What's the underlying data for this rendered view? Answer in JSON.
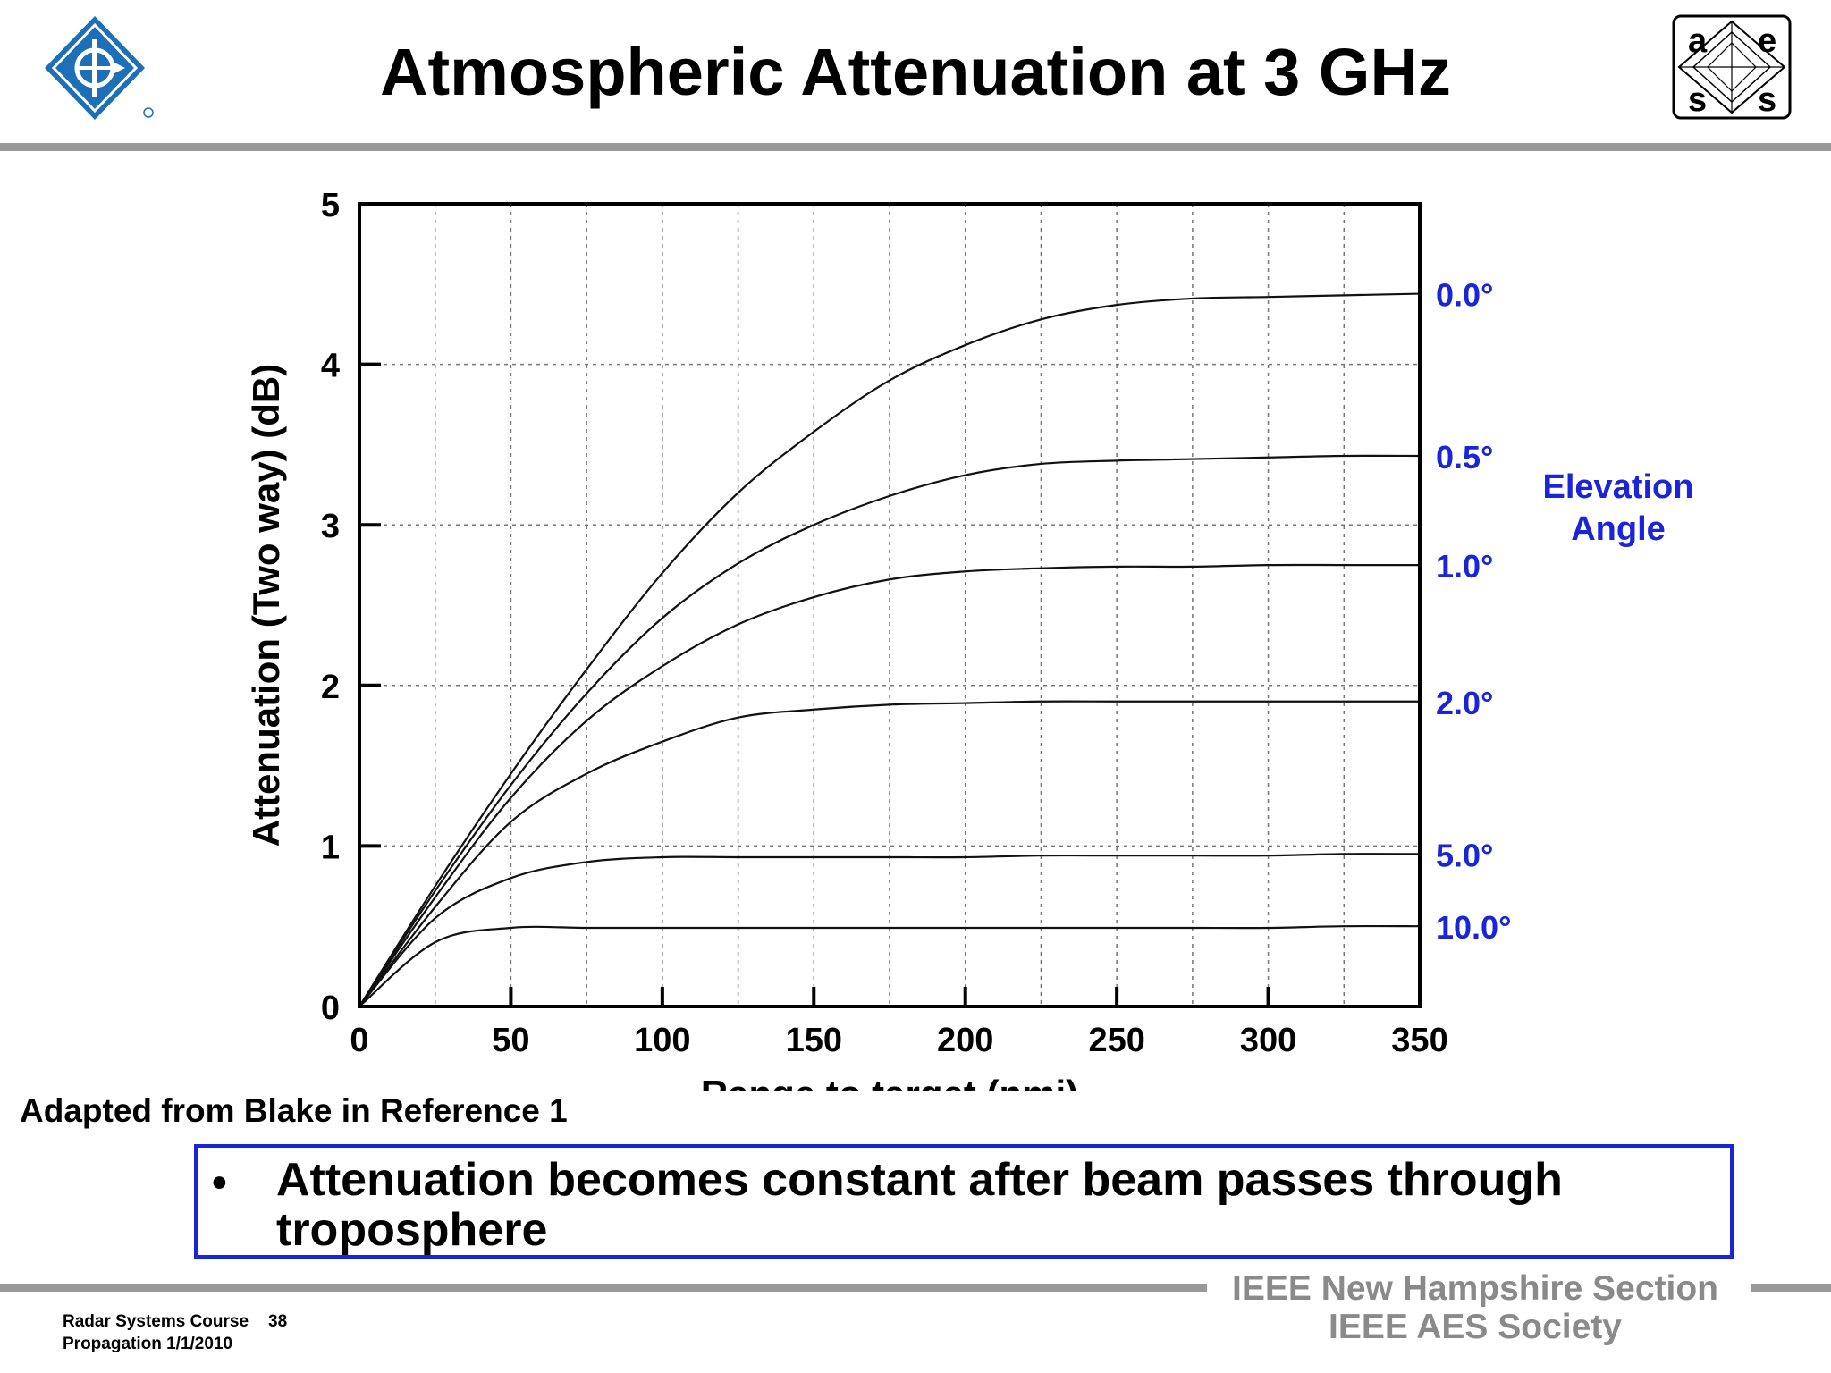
{
  "slide": {
    "title": "Atmospheric Attenuation at 3 GHz",
    "source_note": "Adapted from Blake in Reference 1",
    "callout": {
      "bullet": "•",
      "text": "Attenuation becomes constant after beam passes through troposphere"
    },
    "footer": {
      "org_line1": "IEEE New Hampshire Section",
      "org_line2": "IEEE AES Society",
      "course": "Radar Systems Course",
      "page": "38",
      "topic_date": "Propagation  1/1/2010"
    },
    "logos": {
      "left": "ieee-diamond-logo",
      "right": "aes-logo",
      "aes_letters": [
        "a",
        "e",
        "s",
        "s"
      ]
    },
    "colors": {
      "accent_blue": "#1a24d8",
      "rule_gray": "#999999",
      "ieee_blue": "#1d6fb8"
    }
  },
  "chart_data": {
    "type": "line",
    "title": "",
    "xlabel": "Range to target (nmi)",
    "ylabel": "Attenuation (Two way) (dB)",
    "xlim": [
      0,
      350
    ],
    "ylim": [
      0,
      5
    ],
    "xticks": [
      0,
      50,
      100,
      150,
      200,
      250,
      300,
      350
    ],
    "yticks": [
      0,
      1,
      2,
      3,
      4,
      5
    ],
    "grid": true,
    "legend_title": "Elevation Angle",
    "series": [
      {
        "name": "0.0°",
        "x": [
          0,
          25,
          50,
          75,
          100,
          125,
          150,
          175,
          200,
          225,
          250,
          275,
          300,
          325,
          350
        ],
        "y": [
          0,
          0.75,
          1.45,
          2.1,
          2.7,
          3.2,
          3.58,
          3.9,
          4.12,
          4.28,
          4.37,
          4.41,
          4.42,
          4.43,
          4.44
        ]
      },
      {
        "name": "0.5°",
        "x": [
          0,
          25,
          50,
          75,
          100,
          125,
          150,
          175,
          200,
          225,
          250,
          275,
          300,
          325,
          350
        ],
        "y": [
          0,
          0.72,
          1.38,
          1.95,
          2.42,
          2.76,
          3.0,
          3.18,
          3.31,
          3.38,
          3.4,
          3.41,
          3.42,
          3.43,
          3.43
        ]
      },
      {
        "name": "1.0°",
        "x": [
          0,
          25,
          50,
          75,
          100,
          125,
          150,
          175,
          200,
          225,
          250,
          275,
          300,
          325,
          350
        ],
        "y": [
          0,
          0.68,
          1.3,
          1.78,
          2.12,
          2.38,
          2.55,
          2.66,
          2.71,
          2.73,
          2.74,
          2.74,
          2.75,
          2.75,
          2.75
        ]
      },
      {
        "name": "2.0°",
        "x": [
          0,
          25,
          50,
          75,
          100,
          125,
          150,
          175,
          200,
          225,
          250,
          275,
          300,
          325,
          350
        ],
        "y": [
          0,
          0.62,
          1.15,
          1.45,
          1.65,
          1.8,
          1.85,
          1.88,
          1.89,
          1.9,
          1.9,
          1.9,
          1.9,
          1.9,
          1.9
        ]
      },
      {
        "name": "5.0°",
        "x": [
          0,
          25,
          50,
          75,
          100,
          125,
          150,
          175,
          200,
          225,
          250,
          275,
          300,
          325,
          350
        ],
        "y": [
          0,
          0.55,
          0.8,
          0.9,
          0.93,
          0.93,
          0.93,
          0.93,
          0.93,
          0.94,
          0.94,
          0.94,
          0.94,
          0.95,
          0.95
        ]
      },
      {
        "name": "10.0°",
        "x": [
          0,
          25,
          50,
          75,
          100,
          125,
          150,
          175,
          200,
          225,
          250,
          275,
          300,
          325,
          350
        ],
        "y": [
          0,
          0.4,
          0.49,
          0.49,
          0.49,
          0.49,
          0.49,
          0.49,
          0.49,
          0.49,
          0.49,
          0.49,
          0.49,
          0.5,
          0.5
        ]
      }
    ]
  }
}
